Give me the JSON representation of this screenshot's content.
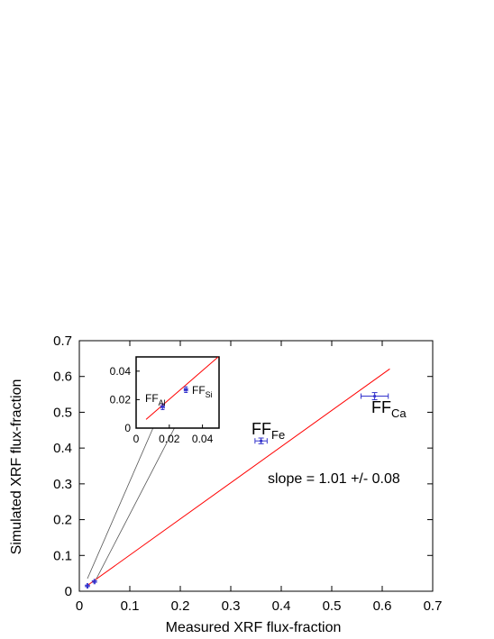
{
  "chart_data": {
    "type": "scatter",
    "xlabel": "Measured XRF flux-fraction",
    "ylabel": "Simulated XRF flux-fraction",
    "xlim": [
      0,
      0.7
    ],
    "ylim": [
      0,
      0.7
    ],
    "xticks": [
      "0",
      "0.1",
      "0.2",
      "0.3",
      "0.4",
      "0.5",
      "0.6",
      "0.7"
    ],
    "yticks": [
      "0",
      "0.1",
      "0.2",
      "0.3",
      "0.4",
      "0.5",
      "0.6",
      "0.7"
    ],
    "fit_line": {
      "slope": 1.01,
      "x": [
        0.015,
        0.615
      ]
    },
    "fit_label": "slope = 1.01 +/- 0.08",
    "points": [
      {
        "label": "FF",
        "sub": "Ca",
        "x": 0.585,
        "y": 0.545,
        "xerr": 0.027,
        "yerr": 0.01
      },
      {
        "label": "FF",
        "sub": "Fe",
        "x": 0.36,
        "y": 0.42,
        "xerr": 0.012,
        "yerr": 0.008
      },
      {
        "label": "FF",
        "sub": "Si",
        "x": 0.03,
        "y": 0.027,
        "xerr": 0.001,
        "yerr": 0.002
      },
      {
        "label": "FF",
        "sub": "Al",
        "x": 0.016,
        "y": 0.015,
        "xerr": 0.001,
        "yerr": 0.002
      }
    ],
    "inset": {
      "xlim": [
        0,
        0.05
      ],
      "ylim": [
        0,
        0.05
      ],
      "xticks": [
        "0",
        "0.02",
        "0.04"
      ],
      "yticks": [
        "0",
        "0.02",
        "0.04"
      ]
    },
    "colors": {
      "fit": "#ff0000",
      "points": "#3333cc",
      "axes": "#000000",
      "arrows": "#555555"
    }
  }
}
